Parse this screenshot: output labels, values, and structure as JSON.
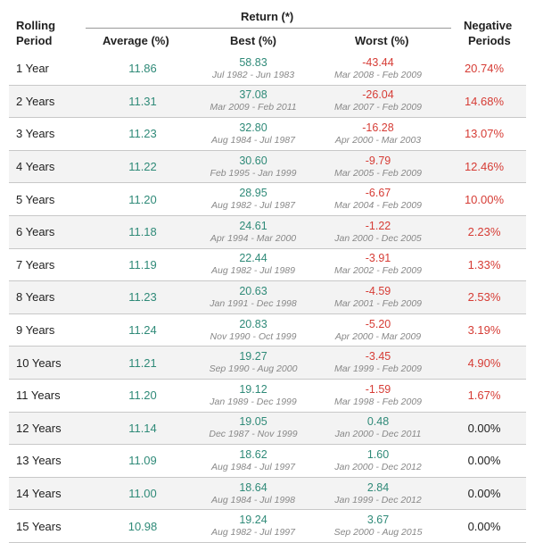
{
  "headers": {
    "period_line1": "Rolling",
    "period_line2": "Period",
    "return_group": "Return (*)",
    "average": "Average (%)",
    "best": "Best (%)",
    "worst": "Worst (%)",
    "negative_line1": "Negative",
    "negative_line2": "Periods"
  },
  "colors": {
    "positive": "#2f8a78",
    "negative": "#d63c35",
    "neutral": "#222222"
  },
  "rows": [
    {
      "period": "1 Year",
      "average": "11.86",
      "best": "58.83",
      "best_dates": "Jul 1982 - Jun 1983",
      "worst": "-43.44",
      "worst_dates": "Mar 2008 - Feb 2009",
      "negative": "20.74%"
    },
    {
      "period": "2 Years",
      "average": "11.31",
      "best": "37.08",
      "best_dates": "Mar 2009 - Feb 2011",
      "worst": "-26.04",
      "worst_dates": "Mar 2007 - Feb 2009",
      "negative": "14.68%"
    },
    {
      "period": "3 Years",
      "average": "11.23",
      "best": "32.80",
      "best_dates": "Aug 1984 - Jul 1987",
      "worst": "-16.28",
      "worst_dates": "Apr 2000 - Mar 2003",
      "negative": "13.07%"
    },
    {
      "period": "4 Years",
      "average": "11.22",
      "best": "30.60",
      "best_dates": "Feb 1995 - Jan 1999",
      "worst": "-9.79",
      "worst_dates": "Mar 2005 - Feb 2009",
      "negative": "12.46%"
    },
    {
      "period": "5 Years",
      "average": "11.20",
      "best": "28.95",
      "best_dates": "Aug 1982 - Jul 1987",
      "worst": "-6.67",
      "worst_dates": "Mar 2004 - Feb 2009",
      "negative": "10.00%"
    },
    {
      "period": "6 Years",
      "average": "11.18",
      "best": "24.61",
      "best_dates": "Apr 1994 - Mar 2000",
      "worst": "-1.22",
      "worst_dates": "Jan 2000 - Dec 2005",
      "negative": "2.23%"
    },
    {
      "period": "7 Years",
      "average": "11.19",
      "best": "22.44",
      "best_dates": "Aug 1982 - Jul 1989",
      "worst": "-3.91",
      "worst_dates": "Mar 2002 - Feb 2009",
      "negative": "1.33%"
    },
    {
      "period": "8 Years",
      "average": "11.23",
      "best": "20.63",
      "best_dates": "Jan 1991 - Dec 1998",
      "worst": "-4.59",
      "worst_dates": "Mar 2001 - Feb 2009",
      "negative": "2.53%"
    },
    {
      "period": "9 Years",
      "average": "11.24",
      "best": "20.83",
      "best_dates": "Nov 1990 - Oct 1999",
      "worst": "-5.20",
      "worst_dates": "Apr 2000 - Mar 2009",
      "negative": "3.19%"
    },
    {
      "period": "10 Years",
      "average": "11.21",
      "best": "19.27",
      "best_dates": "Sep 1990 - Aug 2000",
      "worst": "-3.45",
      "worst_dates": "Mar 1999 - Feb 2009",
      "negative": "4.90%"
    },
    {
      "period": "11 Years",
      "average": "11.20",
      "best": "19.12",
      "best_dates": "Jan 1989 - Dec 1999",
      "worst": "-1.59",
      "worst_dates": "Mar 1998 - Feb 2009",
      "negative": "1.67%"
    },
    {
      "period": "12 Years",
      "average": "11.14",
      "best": "19.05",
      "best_dates": "Dec 1987 - Nov 1999",
      "worst": "0.48",
      "worst_dates": "Jan 2000 - Dec 2011",
      "negative": "0.00%"
    },
    {
      "period": "13 Years",
      "average": "11.09",
      "best": "18.62",
      "best_dates": "Aug 1984 - Jul 1997",
      "worst": "1.60",
      "worst_dates": "Jan 2000 - Dec 2012",
      "negative": "0.00%"
    },
    {
      "period": "14 Years",
      "average": "11.00",
      "best": "18.64",
      "best_dates": "Aug 1984 - Jul 1998",
      "worst": "2.84",
      "worst_dates": "Jan 1999 - Dec 2012",
      "negative": "0.00%"
    },
    {
      "period": "15 Years",
      "average": "10.98",
      "best": "19.24",
      "best_dates": "Aug 1982 - Jul 1997",
      "worst": "3.67",
      "worst_dates": "Sep 2000 - Aug 2015",
      "negative": "0.00%"
    }
  ]
}
